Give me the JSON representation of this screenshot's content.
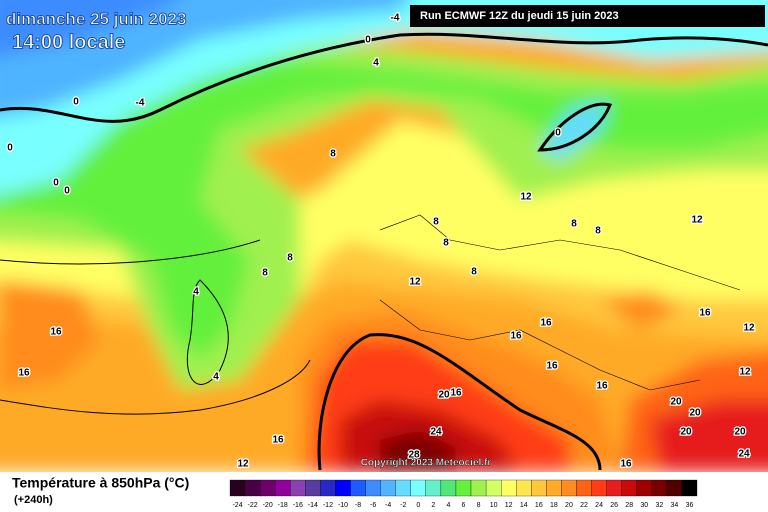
{
  "header": {
    "date": "dimanche 25 juin 2023",
    "time": "14:00 locale",
    "run": "Run ECMWF 12Z du jeudi 15 juin 2023"
  },
  "copyright": "Copyright 2023 Meteociel.fr",
  "legend": {
    "title": "Température à 850hPa (°C)",
    "lead": "(+240h)",
    "ticks": [
      "-24",
      "-22",
      "-20",
      "-18",
      "-16",
      "-14",
      "-12",
      "-10",
      "-8",
      "-6",
      "-4",
      "-2",
      "0",
      "2",
      "4",
      "6",
      "8",
      "10",
      "12",
      "14",
      "16",
      "18",
      "20",
      "22",
      "24",
      "26",
      "28",
      "30",
      "32",
      "34",
      "36"
    ],
    "colors": [
      "#2a0020",
      "#4b0046",
      "#6e006e",
      "#91009a",
      "#8a40b0",
      "#5a3ca0",
      "#2828c8",
      "#0000ff",
      "#1e5aff",
      "#3c8cff",
      "#50b4ff",
      "#64dcff",
      "#78ffff",
      "#64f0c8",
      "#50e678",
      "#64f03c",
      "#a0f050",
      "#d2ff64",
      "#ffff64",
      "#ffe650",
      "#ffc83c",
      "#ffaa28",
      "#ff8c1e",
      "#ff6414",
      "#ff3c14",
      "#e61e1e",
      "#c80a0a",
      "#a00000",
      "#780000",
      "#500000",
      "#000000"
    ]
  },
  "map": {
    "contour_labels": [
      "-4",
      "0",
      "4",
      "-4",
      "0",
      "0",
      "0",
      "0",
      "8",
      "0",
      "12",
      "8",
      "8",
      "8",
      "12",
      "8",
      "8",
      "8",
      "8",
      "4",
      "12",
      "16",
      "16",
      "4",
      "16",
      "16",
      "16",
      "16",
      "12",
      "16",
      "20",
      "16",
      "24",
      "20",
      "20",
      "20",
      "20",
      "24",
      "28",
      "16",
      "12",
      "16",
      "12"
    ]
  }
}
